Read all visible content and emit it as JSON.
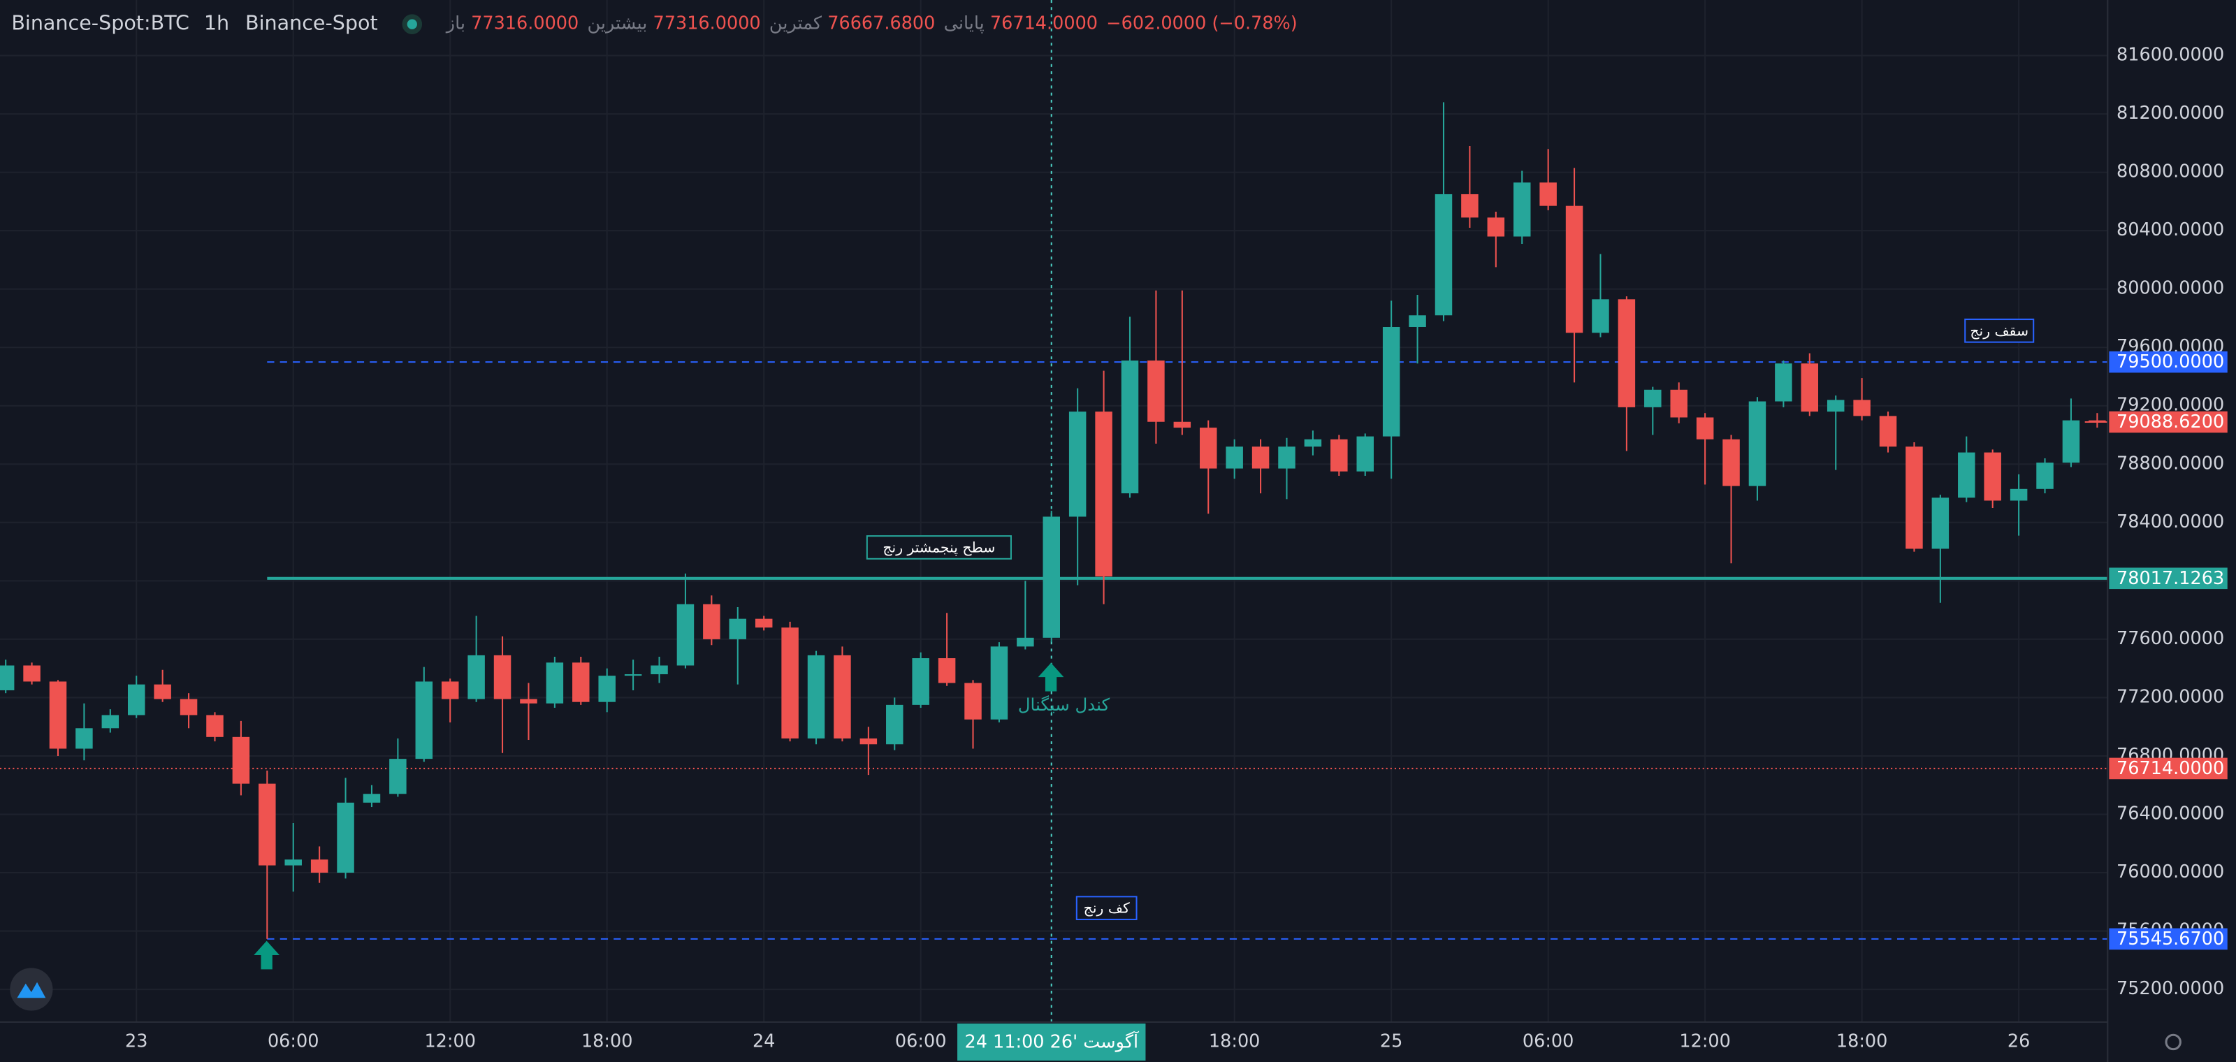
{
  "header": {
    "symbol": "Binance-Spot:BTC",
    "interval": "1h",
    "exchange": "Binance-Spot",
    "legend": [
      {
        "label": "باز",
        "value": "77316.0000"
      },
      {
        "label": "بیشترین",
        "value": "77316.0000"
      },
      {
        "label": "کمترین",
        "value": "76667.6800"
      },
      {
        "label": "پایانی",
        "value": "76714.0000"
      }
    ],
    "change": "−602.0000 (−0.78%)"
  },
  "chart_data": {
    "type": "candlestick",
    "up_color": "#26a69a",
    "down_color": "#ef5350",
    "ylim": [
      74976,
      81981
    ],
    "xlim": [
      -0.218,
      80.4
    ],
    "yticks": [
      {
        "value": 75200,
        "label": "75200.0000"
      },
      {
        "value": 75600,
        "label": "75600.0000"
      },
      {
        "value": 76000,
        "label": "76000.0000"
      },
      {
        "value": 76400,
        "label": "76400.0000"
      },
      {
        "value": 76800,
        "label": "76800.0000"
      },
      {
        "value": 77200,
        "label": "77200.0000"
      },
      {
        "value": 77600,
        "label": "77600.0000"
      },
      {
        "value": 78000,
        "label": "78000.0000"
      },
      {
        "value": 78400,
        "label": "78400.0000"
      },
      {
        "value": 78800,
        "label": "78800.0000"
      },
      {
        "value": 79200,
        "label": "79200.0000"
      },
      {
        "value": 79600,
        "label": "79600.0000"
      },
      {
        "value": 80000,
        "label": "80000.0000"
      },
      {
        "value": 80400,
        "label": "80400.0000"
      },
      {
        "value": 80800,
        "label": "80800.0000"
      },
      {
        "value": 81200,
        "label": "81200.0000"
      },
      {
        "value": 81600,
        "label": "81600.0000"
      }
    ],
    "xticks": [
      {
        "value": 5,
        "label": "23"
      },
      {
        "value": 11,
        "label": "06:00"
      },
      {
        "value": 17,
        "label": "12:00"
      },
      {
        "value": 23,
        "label": "18:00"
      },
      {
        "value": 29,
        "label": "24"
      },
      {
        "value": 35,
        "label": "06:00"
      },
      {
        "value": 47,
        "label": "18:00"
      },
      {
        "value": 53,
        "label": "25"
      },
      {
        "value": 59,
        "label": "06:00"
      },
      {
        "value": 65,
        "label": "12:00"
      },
      {
        "value": 71,
        "label": "18:00"
      },
      {
        "value": 77,
        "label": "26"
      }
    ],
    "grid": true,
    "ohlc": {
      "open": [
        77250,
        77420,
        77310,
        76850,
        76990,
        77080,
        77290,
        77190,
        77080,
        76930,
        76610,
        76050,
        76090,
        76000,
        76480,
        76540,
        76780,
        77310,
        77190,
        77490,
        77190,
        77160,
        77440,
        77170,
        77350,
        77360,
        77420,
        77840,
        77600,
        77740,
        77680,
        76920,
        77490,
        76920,
        76880,
        77150,
        77470,
        77300,
        77050,
        77550,
        77610,
        78440,
        79160,
        78600,
        79510,
        79090,
        79050,
        78770,
        78920,
        78770,
        78920,
        78970,
        78750,
        78990,
        79740,
        79820,
        80650,
        80490,
        80360,
        80730,
        80570,
        79700,
        79930,
        79190,
        79310,
        79120,
        78970,
        78650,
        79230,
        79490,
        79160,
        79240,
        79130,
        78920,
        78220,
        78570,
        78880,
        78550,
        78630,
        78810,
        79100
      ],
      "high": [
        77460,
        77440,
        77320,
        77160,
        77120,
        77350,
        77390,
        77230,
        77100,
        77040,
        76700,
        76340,
        76180,
        76650,
        76600,
        76920,
        77410,
        77330,
        77760,
        77620,
        77300,
        77480,
        77480,
        77400,
        77460,
        77480,
        78050,
        77900,
        77820,
        77760,
        77720,
        77520,
        77550,
        77000,
        77200,
        77510,
        77780,
        77320,
        77580,
        78000,
        78480,
        79320,
        79440,
        79810,
        79990,
        79990,
        79100,
        78970,
        78970,
        78980,
        79030,
        79000,
        79010,
        79920,
        79960,
        81280,
        80980,
        80530,
        80810,
        80960,
        80830,
        80240,
        79950,
        79330,
        79360,
        79150,
        79000,
        79260,
        79510,
        79560,
        79270,
        79390,
        79160,
        78950,
        78590,
        78990,
        78900,
        78730,
        78840,
        79250,
        79150
      ],
      "low": [
        77230,
        77290,
        76800,
        76770,
        76960,
        77060,
        77170,
        76990,
        76900,
        76530,
        75545.67,
        75870,
        75930,
        75960,
        76450,
        76520,
        76760,
        77030,
        77170,
        76820,
        76910,
        77130,
        77150,
        77100,
        77250,
        77300,
        77400,
        77560,
        77290,
        77660,
        76900,
        76880,
        76900,
        76670,
        76840,
        77130,
        77280,
        76850,
        77030,
        77530,
        77580,
        77970,
        77840,
        78570,
        78940,
        79000,
        78460,
        78700,
        78600,
        78560,
        78860,
        78720,
        78720,
        78700,
        79490,
        79780,
        80420,
        80150,
        80310,
        80540,
        79360,
        79670,
        78890,
        79000,
        79080,
        78660,
        78120,
        78550,
        79190,
        79130,
        78760,
        79100,
        78880,
        78200,
        77850,
        78540,
        78500,
        78310,
        78600,
        78780,
        79050
      ],
      "close": [
        77420,
        77310,
        76850,
        76990,
        77080,
        77290,
        77190,
        77080,
        76930,
        76610,
        76050,
        76090,
        76000,
        76480,
        76540,
        76780,
        77310,
        77190,
        77490,
        77190,
        77160,
        77440,
        77170,
        77350,
        77360,
        77420,
        77840,
        77600,
        77740,
        77680,
        76920,
        77490,
        76920,
        76880,
        77150,
        77470,
        77300,
        77050,
        77550,
        77610,
        78440,
        79160,
        78030,
        79510,
        79090,
        79050,
        78770,
        78920,
        78770,
        78920,
        78970,
        78750,
        78990,
        79740,
        79820,
        80650,
        80490,
        80360,
        80730,
        80570,
        79700,
        79930,
        79190,
        79310,
        79120,
        78970,
        78650,
        79230,
        79490,
        79160,
        79240,
        79130,
        78920,
        78220,
        78570,
        78880,
        78550,
        78630,
        78810,
        79100,
        79088.62
      ]
    },
    "levels": [
      {
        "value": 79500,
        "value_label": "79500.0000",
        "color": "#2962ff",
        "style": "dashed"
      },
      {
        "value": 78017.1263,
        "value_label": "78017.1263",
        "color": "#26a69a",
        "style": "solid"
      },
      {
        "value": 75545.67,
        "value_label": "75545.6700",
        "color": "#2962ff",
        "style": "dashed"
      },
      {
        "value": 76714,
        "value_label": "76714.0000",
        "color": "#ef5350",
        "style": "dotted"
      }
    ],
    "last_price": {
      "value": 79088.62,
      "label": "79088.6200",
      "color": "#ef5350"
    },
    "crosshair": {
      "value": 40,
      "label": "24 آگوست '26 11:00",
      "color": "#26a69a"
    },
    "annotations": [
      {
        "text": "سقف رنج"
      },
      {
        "text": "سطح پنجمشتر رنج"
      },
      {
        "text": "کف رنج"
      },
      {
        "text": "کندل سیگنال"
      }
    ]
  }
}
